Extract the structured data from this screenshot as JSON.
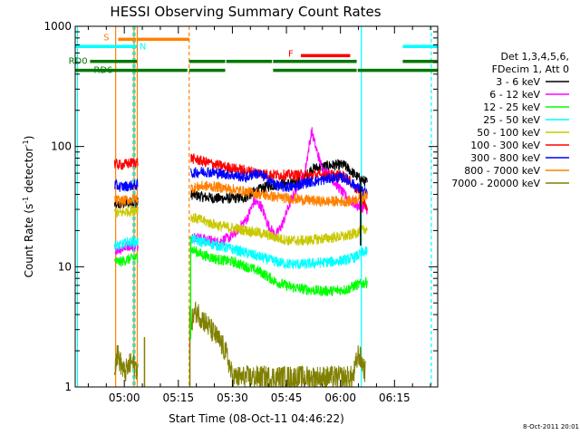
{
  "chart_data": {
    "type": "line",
    "title": "HESSI Observing Summary Count Rates",
    "xlabel": "Start Time (08-Oct-11 04:46:22)",
    "ylabel_main": "Count Rate (s",
    "ylabel_sup1": "-1",
    "ylabel_mid": " detector",
    "ylabel_sup2": "-1",
    "ylabel_end": ")",
    "yscale": "log",
    "ylim": [
      1,
      1000
    ],
    "xlim_minutes": [
      286.37,
      387.0
    ],
    "x_ticks": [
      {
        "label": "05:00",
        "min": 300
      },
      {
        "label": "05:15",
        "min": 315
      },
      {
        "label": "05:30",
        "min": 330
      },
      {
        "label": "05:45",
        "min": 345
      },
      {
        "label": "06:00",
        "min": 360
      },
      {
        "label": "06:15",
        "min": 375
      }
    ],
    "y_ticks": [
      {
        "label": "1",
        "value": 1
      },
      {
        "label": "10",
        "value": 10
      },
      {
        "label": "100",
        "value": 100
      },
      {
        "label": "1000",
        "value": 1000
      }
    ],
    "legend": {
      "header1": "Det 1,3,4,5,6,",
      "header2": "FDecim 1, Att 0",
      "position": "right"
    },
    "flag_labels": {
      "saa": "S",
      "night": "N",
      "flare": "F",
      "rd0": "RD0",
      "rd6": "RD6"
    },
    "flags": {
      "saa": {
        "color": "#ff8000",
        "y": 780,
        "segments": [
          [
            298.3,
            303.3
          ],
          [
            303.6,
            318.0
          ]
        ]
      },
      "night": {
        "color": "#00ffff",
        "y": 680,
        "segments": [
          [
            286.37,
            303.5
          ],
          [
            377.3,
            387.0
          ]
        ]
      },
      "flare": {
        "color": "#ff0000",
        "y": 570,
        "segments": [
          [
            349.0,
            362.7
          ]
        ]
      },
      "rd0": {
        "color": "#007700",
        "y": 510,
        "segments": [
          [
            290.5,
            303.5
          ],
          [
            318.0,
            328.0
          ],
          [
            328.3,
            341.0
          ],
          [
            341.3,
            364.5
          ],
          [
            377.3,
            387.0
          ]
        ]
      },
      "rd6": {
        "color": "#007700",
        "y": 430,
        "segments": [
          [
            286.37,
            303.5
          ],
          [
            303.6,
            317.5
          ],
          [
            318.0,
            328.0
          ],
          [
            341.3,
            364.5
          ],
          [
            364.8,
            387.0
          ]
        ]
      }
    },
    "vertical_lines": [
      {
        "min": 297.6,
        "color": "#ff8000",
        "style": "solid"
      },
      {
        "min": 302.7,
        "color": "#ff8000",
        "style": "solid"
      },
      {
        "min": 303.6,
        "color": "#ff8000",
        "style": "solid"
      },
      {
        "min": 318.0,
        "color": "#ff8000",
        "style": "dashed"
      },
      {
        "min": 287.0,
        "color": "#00ffff",
        "style": "solid"
      },
      {
        "min": 302.4,
        "color": "#00ffff",
        "style": "dashed"
      },
      {
        "min": 303.0,
        "color": "#00ffff",
        "style": "dashed"
      },
      {
        "min": 365.8,
        "color": "#00ffff",
        "style": "solid"
      },
      {
        "min": 385.2,
        "color": "#00ffff",
        "style": "dashed"
      }
    ],
    "data_intervals": [
      [
        297.3,
        303.8
      ],
      [
        318.5,
        367.5
      ]
    ],
    "series": [
      {
        "name": "3 - 6 keV",
        "color": "#000000",
        "points": [
          [
            297.3,
            33
          ],
          [
            299,
            33
          ],
          [
            301,
            34
          ],
          [
            303.8,
            34
          ],
          [
            318.5,
            40
          ],
          [
            322,
            38
          ],
          [
            326,
            37
          ],
          [
            330,
            37
          ],
          [
            334,
            38
          ],
          [
            336,
            42
          ],
          [
            340,
            47
          ],
          [
            344,
            49
          ],
          [
            348,
            50
          ],
          [
            350,
            55
          ],
          [
            352,
            65
          ],
          [
            355,
            68
          ],
          [
            358,
            70
          ],
          [
            361,
            70
          ],
          [
            363,
            62
          ],
          [
            365,
            55
          ],
          [
            367.5,
            50
          ]
        ]
      },
      {
        "name": "6 - 12 keV",
        "color": "#ff00ff",
        "points": [
          [
            297.3,
            14
          ],
          [
            299,
            14
          ],
          [
            301,
            15
          ],
          [
            303.8,
            15
          ],
          [
            318.5,
            18
          ],
          [
            322,
            17
          ],
          [
            326,
            16
          ],
          [
            330,
            18
          ],
          [
            334,
            25
          ],
          [
            336,
            35
          ],
          [
            338,
            32
          ],
          [
            340,
            22
          ],
          [
            342,
            18
          ],
          [
            344,
            23
          ],
          [
            346,
            34
          ],
          [
            348,
            46
          ],
          [
            350,
            58
          ],
          [
            352,
            135
          ],
          [
            353.5,
            90
          ],
          [
            355,
            65
          ],
          [
            357,
            58
          ],
          [
            359,
            48
          ],
          [
            361,
            40
          ],
          [
            363,
            35
          ],
          [
            365,
            32
          ],
          [
            367.5,
            30
          ]
        ]
      },
      {
        "name": "12 - 25 keV",
        "color": "#00ff00",
        "points": [
          [
            297.3,
            11
          ],
          [
            299,
            11
          ],
          [
            301,
            11.5
          ],
          [
            303.8,
            12
          ],
          [
            318.5,
            14
          ],
          [
            322,
            12.5
          ],
          [
            326,
            11.5
          ],
          [
            330,
            11
          ],
          [
            334,
            10
          ],
          [
            338,
            9
          ],
          [
            342,
            7.5
          ],
          [
            346,
            6.8
          ],
          [
            350,
            6.5
          ],
          [
            354,
            6.3
          ],
          [
            358,
            6.3
          ],
          [
            362,
            6.5
          ],
          [
            364,
            7
          ],
          [
            366,
            7.2
          ],
          [
            367.5,
            7.5
          ]
        ]
      },
      {
        "name": "25 - 50 keV",
        "color": "#00ffff",
        "points": [
          [
            297.3,
            15
          ],
          [
            299,
            15
          ],
          [
            301,
            16
          ],
          [
            303.8,
            16
          ],
          [
            318.5,
            17
          ],
          [
            322,
            16
          ],
          [
            326,
            15
          ],
          [
            330,
            14
          ],
          [
            334,
            13
          ],
          [
            338,
            12
          ],
          [
            342,
            11
          ],
          [
            346,
            10.5
          ],
          [
            350,
            10.5
          ],
          [
            354,
            10.8
          ],
          [
            358,
            11
          ],
          [
            362,
            11.5
          ],
          [
            364,
            12
          ],
          [
            366,
            13
          ],
          [
            367.5,
            13.5
          ]
        ]
      },
      {
        "name": "50 - 100 keV",
        "color": "#c8c800",
        "points": [
          [
            297.3,
            28
          ],
          [
            299,
            28
          ],
          [
            301,
            29
          ],
          [
            303.8,
            30
          ],
          [
            318.5,
            26
          ],
          [
            322,
            24
          ],
          [
            326,
            22
          ],
          [
            330,
            21
          ],
          [
            334,
            20
          ],
          [
            338,
            19
          ],
          [
            342,
            17.5
          ],
          [
            346,
            16.5
          ],
          [
            350,
            16.5
          ],
          [
            354,
            17
          ],
          [
            358,
            17.5
          ],
          [
            362,
            18
          ],
          [
            364,
            19
          ],
          [
            366,
            20
          ],
          [
            367.5,
            21
          ]
        ]
      },
      {
        "name": "100 - 300 keV",
        "color": "#ff0000",
        "points": [
          [
            297.3,
            72
          ],
          [
            299,
            70
          ],
          [
            301,
            72
          ],
          [
            303.8,
            75
          ],
          [
            318.5,
            80
          ],
          [
            322,
            75
          ],
          [
            326,
            70
          ],
          [
            330,
            66
          ],
          [
            334,
            63
          ],
          [
            338,
            60
          ],
          [
            342,
            58
          ],
          [
            346,
            58
          ],
          [
            350,
            58
          ],
          [
            354,
            58
          ],
          [
            358,
            58
          ],
          [
            361,
            57
          ],
          [
            363,
            50
          ],
          [
            365,
            42
          ],
          [
            367.5,
            30
          ]
        ]
      },
      {
        "name": "300 - 800 keV",
        "color": "#0000ff",
        "points": [
          [
            297.3,
            48
          ],
          [
            299,
            46
          ],
          [
            301,
            47
          ],
          [
            303.8,
            48
          ],
          [
            318.5,
            60
          ],
          [
            322,
            62
          ],
          [
            326,
            60
          ],
          [
            330,
            58
          ],
          [
            334,
            55
          ],
          [
            336,
            60
          ],
          [
            338,
            58
          ],
          [
            340,
            53
          ],
          [
            342,
            48
          ],
          [
            344,
            46
          ],
          [
            346,
            46
          ],
          [
            348,
            47
          ],
          [
            350,
            50
          ],
          [
            354,
            52
          ],
          [
            358,
            55
          ],
          [
            361,
            55
          ],
          [
            363,
            50
          ],
          [
            365,
            45
          ],
          [
            367.5,
            40
          ]
        ]
      },
      {
        "name": "800 - 7000 keV",
        "color": "#ff8000",
        "points": [
          [
            297.3,
            36
          ],
          [
            299,
            35
          ],
          [
            301,
            36
          ],
          [
            303.8,
            37
          ],
          [
            318.5,
            45
          ],
          [
            322,
            47
          ],
          [
            326,
            46
          ],
          [
            330,
            44
          ],
          [
            334,
            42
          ],
          [
            338,
            40
          ],
          [
            342,
            38
          ],
          [
            346,
            37
          ],
          [
            350,
            36
          ],
          [
            354,
            35
          ],
          [
            358,
            35
          ],
          [
            362,
            35
          ],
          [
            364,
            36
          ],
          [
            366,
            38
          ],
          [
            367.5,
            40
          ]
        ]
      },
      {
        "name": "7000 - 20000 keV",
        "color": "#808000",
        "points": [
          [
            297.3,
            1.5
          ],
          [
            298,
            1.9
          ],
          [
            300,
            1.3
          ],
          [
            302,
            1.6
          ],
          [
            303.8,
            1.4
          ],
          [
            318.5,
            3.5
          ],
          [
            320,
            4.3
          ],
          [
            322,
            3.6
          ],
          [
            324,
            3.0
          ],
          [
            326,
            2.5
          ],
          [
            328,
            2.0
          ],
          [
            329,
            1.6
          ],
          [
            330,
            1.2
          ],
          [
            363.5,
            1.2
          ],
          [
            365,
            1.9
          ],
          [
            366,
            1.6
          ],
          [
            367,
            1.3
          ]
        ]
      }
    ],
    "spikes": [
      {
        "min": 305.6,
        "from": 1,
        "to": 2.6,
        "color": "#808000"
      },
      {
        "min": 318.2,
        "from": 1,
        "to": 4.6,
        "color": "#808000"
      },
      {
        "min": 318.4,
        "from": 2.5,
        "to": 18,
        "color": "#00ff00"
      },
      {
        "min": 365.6,
        "from": 15,
        "to": 55,
        "color": "#000000"
      }
    ],
    "grid": false,
    "footer_date": "8-Oct-2011 20:01"
  }
}
